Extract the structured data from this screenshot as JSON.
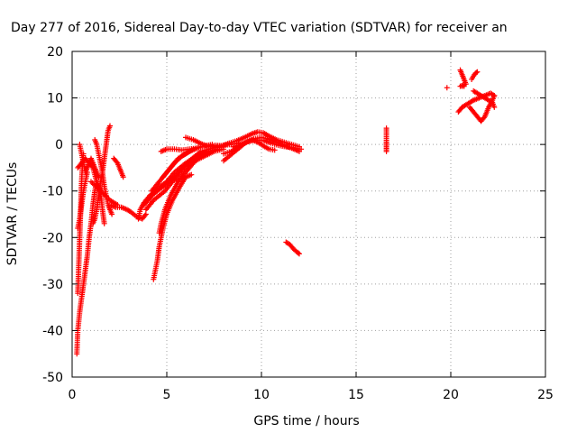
{
  "chart_data": {
    "type": "scatter",
    "title": "Day 277 of 2016, Sidereal Day-to-day VTEC variation (SDTVAR) for receiver an",
    "xlabel": "GPS time / hours",
    "ylabel": "SDTVAR / TECUs",
    "xlim": [
      0,
      25
    ],
    "ylim": [
      -50,
      20
    ],
    "xticks": [
      "0",
      "5",
      "10",
      "15",
      "20",
      "25"
    ],
    "yticks": [
      "-50",
      "-40",
      "-30",
      "-20",
      "-10",
      "0",
      "10",
      "20"
    ],
    "grid": true,
    "marker": "+",
    "color": "#ff0000",
    "segments": [
      [
        [
          0.25,
          -45
        ],
        [
          0.3,
          -40
        ],
        [
          0.4,
          -36
        ],
        [
          0.5,
          -33
        ],
        [
          0.6,
          -30
        ],
        [
          0.7,
          -27
        ],
        [
          0.8,
          -24
        ],
        [
          0.9,
          -20
        ],
        [
          1.0,
          -17
        ],
        [
          1.1,
          -13
        ],
        [
          1.2,
          -10
        ],
        [
          1.3,
          -8
        ]
      ],
      [
        [
          0.3,
          -32
        ],
        [
          0.35,
          -26
        ],
        [
          0.4,
          -20
        ],
        [
          0.45,
          -14
        ],
        [
          0.5,
          -8
        ],
        [
          0.55,
          -4
        ],
        [
          0.6,
          -2
        ]
      ],
      [
        [
          0.3,
          -18
        ],
        [
          0.4,
          -16
        ],
        [
          0.5,
          -13
        ],
        [
          0.6,
          -10
        ],
        [
          0.7,
          -8
        ],
        [
          0.8,
          -6
        ]
      ],
      [
        [
          0.4,
          0
        ],
        [
          0.5,
          -2
        ],
        [
          0.6,
          -4
        ],
        [
          0.7,
          -6
        ],
        [
          0.8,
          -5
        ],
        [
          0.9,
          -4
        ],
        [
          1.0,
          -3
        ],
        [
          1.1,
          -4
        ],
        [
          1.2,
          -5
        ],
        [
          1.3,
          -6
        ],
        [
          1.4,
          -7
        ]
      ],
      [
        [
          0.3,
          -5
        ],
        [
          0.5,
          -4
        ],
        [
          0.7,
          -3
        ],
        [
          0.9,
          -4
        ],
        [
          1.1,
          -5
        ],
        [
          1.3,
          -8
        ],
        [
          1.5,
          -10
        ],
        [
          1.6,
          -14
        ],
        [
          1.7,
          -17
        ]
      ],
      [
        [
          1.1,
          -17
        ],
        [
          1.2,
          -16
        ],
        [
          1.3,
          -14
        ],
        [
          1.4,
          -11
        ],
        [
          1.5,
          -8
        ],
        [
          1.6,
          -6
        ],
        [
          1.7,
          -3
        ],
        [
          1.8,
          0
        ],
        [
          1.9,
          3
        ],
        [
          2.0,
          4
        ]
      ],
      [
        [
          1.2,
          1
        ],
        [
          1.3,
          0
        ],
        [
          1.4,
          -2
        ],
        [
          1.5,
          -4
        ],
        [
          1.6,
          -6
        ],
        [
          1.7,
          -9
        ],
        [
          1.8,
          -11
        ],
        [
          1.9,
          -13
        ],
        [
          2.0,
          -14
        ],
        [
          2.1,
          -15
        ]
      ],
      [
        [
          2.2,
          -3
        ],
        [
          2.3,
          -3.5
        ],
        [
          2.4,
          -4
        ],
        [
          2.5,
          -5
        ],
        [
          2.6,
          -6
        ],
        [
          2.7,
          -7
        ]
      ],
      [
        [
          2.0,
          -13
        ],
        [
          2.3,
          -13.5
        ],
        [
          2.6,
          -13.5
        ],
        [
          2.9,
          -14
        ],
        [
          3.1,
          -14.5
        ],
        [
          3.4,
          -15.5
        ],
        [
          3.7,
          -16
        ],
        [
          3.9,
          -15
        ]
      ],
      [
        [
          1.0,
          -8
        ],
        [
          1.5,
          -10
        ],
        [
          2.0,
          -12
        ],
        [
          2.4,
          -13
        ]
      ],
      [
        [
          3.5,
          -16
        ],
        [
          3.6,
          -14
        ],
        [
          3.8,
          -12.5
        ],
        [
          4.1,
          -11
        ],
        [
          4.5,
          -9.5
        ],
        [
          5.0,
          -8
        ],
        [
          5.5,
          -7.5
        ],
        [
          6.0,
          -7
        ],
        [
          6.3,
          -6.5
        ]
      ],
      [
        [
          4.3,
          -29
        ],
        [
          4.4,
          -27
        ],
        [
          4.5,
          -25
        ],
        [
          4.6,
          -22
        ],
        [
          4.7,
          -20
        ],
        [
          4.8,
          -18
        ],
        [
          5.0,
          -15
        ],
        [
          5.3,
          -12
        ],
        [
          5.7,
          -9
        ],
        [
          6.0,
          -7
        ]
      ],
      [
        [
          4.6,
          -19
        ],
        [
          4.7,
          -17
        ],
        [
          4.9,
          -14
        ],
        [
          5.2,
          -11
        ],
        [
          5.6,
          -8
        ],
        [
          6.0,
          -6
        ],
        [
          6.4,
          -4
        ],
        [
          6.8,
          -2.5
        ],
        [
          7.2,
          -1.5
        ],
        [
          7.6,
          -1
        ]
      ],
      [
        [
          3.8,
          -13
        ],
        [
          4.2,
          -11
        ],
        [
          4.8,
          -9
        ],
        [
          5.4,
          -6
        ],
        [
          6.0,
          -4
        ],
        [
          6.6,
          -2.5
        ],
        [
          7.2,
          -1.5
        ],
        [
          7.8,
          -1
        ]
      ],
      [
        [
          3.9,
          -14
        ],
        [
          4.3,
          -12
        ],
        [
          4.9,
          -10
        ],
        [
          5.5,
          -7
        ],
        [
          6.0,
          -5
        ],
        [
          6.5,
          -3.5
        ],
        [
          7.0,
          -2.5
        ],
        [
          7.5,
          -1.5
        ],
        [
          8.0,
          -1
        ]
      ],
      [
        [
          4.0,
          -12
        ],
        [
          4.4,
          -10
        ],
        [
          5.0,
          -8.5
        ],
        [
          5.6,
          -6
        ],
        [
          6.2,
          -3.5
        ],
        [
          6.8,
          -1.5
        ],
        [
          7.4,
          -0.8
        ],
        [
          8.0,
          -0.5
        ]
      ],
      [
        [
          4.2,
          -10
        ],
        [
          4.6,
          -8
        ],
        [
          5.0,
          -6
        ],
        [
          5.4,
          -4
        ],
        [
          5.8,
          -2.5
        ],
        [
          6.2,
          -1.5
        ],
        [
          6.6,
          -0.8
        ],
        [
          7.0,
          -0.3
        ],
        [
          7.4,
          0
        ]
      ],
      [
        [
          4.8,
          -7
        ],
        [
          5.2,
          -5
        ],
        [
          5.6,
          -3
        ],
        [
          6.0,
          -2
        ],
        [
          6.4,
          -1
        ],
        [
          6.8,
          -0.5
        ],
        [
          7.2,
          -0.3
        ],
        [
          7.6,
          -0.2
        ],
        [
          8.0,
          -0.3
        ]
      ],
      [
        [
          4.7,
          -1.5
        ],
        [
          5.0,
          -1
        ],
        [
          5.4,
          -1
        ],
        [
          5.8,
          -1.2
        ],
        [
          6.2,
          -1
        ],
        [
          6.6,
          -0.8
        ]
      ],
      [
        [
          6.0,
          1.5
        ],
        [
          6.4,
          1
        ],
        [
          6.8,
          0.2
        ],
        [
          7.2,
          -0.5
        ],
        [
          7.6,
          -0.5
        ],
        [
          8.0,
          -0.2
        ],
        [
          8.4,
          0
        ],
        [
          8.8,
          0.3
        ]
      ],
      [
        [
          7.5,
          -0.5
        ],
        [
          7.9,
          -0.3
        ],
        [
          8.3,
          0.3
        ],
        [
          8.7,
          0.8
        ],
        [
          9.1,
          1.5
        ],
        [
          9.5,
          2.3
        ],
        [
          9.8,
          2.7
        ],
        [
          10.1,
          2.5
        ],
        [
          10.4,
          1.8
        ],
        [
          10.8,
          1
        ],
        [
          11.2,
          0.5
        ],
        [
          11.6,
          0
        ],
        [
          12.0,
          -0.5
        ]
      ],
      [
        [
          8.0,
          -2
        ],
        [
          8.4,
          -1.5
        ],
        [
          8.8,
          -0.5
        ],
        [
          9.2,
          0.5
        ],
        [
          9.6,
          1.2
        ],
        [
          10.0,
          1.5
        ],
        [
          10.4,
          1.2
        ],
        [
          10.8,
          0.5
        ],
        [
          11.2,
          -0.2
        ],
        [
          11.6,
          -0.8
        ],
        [
          12.0,
          -1.5
        ]
      ],
      [
        [
          8.0,
          -3.5
        ],
        [
          8.3,
          -2.5
        ],
        [
          8.6,
          -1.5
        ],
        [
          8.9,
          -0.5
        ],
        [
          9.2,
          0.5
        ],
        [
          9.5,
          1
        ],
        [
          9.8,
          0.5
        ],
        [
          10.1,
          -0.3
        ],
        [
          10.4,
          -1
        ],
        [
          10.7,
          -1.2
        ]
      ],
      [
        [
          8.5,
          -0.5
        ],
        [
          8.9,
          0
        ],
        [
          9.3,
          0.6
        ],
        [
          9.7,
          1
        ],
        [
          10.1,
          0.9
        ],
        [
          10.5,
          0.3
        ],
        [
          10.9,
          -0.2
        ],
        [
          11.3,
          -0.5
        ],
        [
          11.7,
          -0.8
        ],
        [
          12.1,
          -1
        ]
      ],
      [
        [
          11.3,
          -21
        ],
        [
          11.5,
          -21.5
        ],
        [
          11.7,
          -22.5
        ],
        [
          11.9,
          -23.2
        ],
        [
          12.0,
          -23.5
        ]
      ],
      [
        [
          16.6,
          3.5
        ],
        [
          16.6,
          0.5
        ],
        [
          16.6,
          -0.5
        ],
        [
          16.6,
          -1.5
        ]
      ],
      [
        [
          19.8,
          12.2
        ]
      ],
      [
        [
          20.5,
          16
        ],
        [
          20.6,
          15
        ],
        [
          20.7,
          14
        ],
        [
          20.8,
          13
        ],
        [
          20.5,
          12.5
        ],
        [
          20.7,
          12.5
        ]
      ],
      [
        [
          20.4,
          7
        ],
        [
          20.6,
          8
        ],
        [
          20.8,
          8.5
        ],
        [
          21.0,
          9
        ],
        [
          21.2,
          9.5
        ],
        [
          21.5,
          10
        ],
        [
          21.8,
          10.5
        ],
        [
          22.1,
          11
        ],
        [
          22.3,
          10.5
        ]
      ],
      [
        [
          21.2,
          11.5
        ],
        [
          21.4,
          11
        ],
        [
          21.6,
          10.5
        ],
        [
          21.8,
          10
        ],
        [
          22.0,
          9.5
        ],
        [
          22.2,
          9
        ],
        [
          22.3,
          8
        ]
      ],
      [
        [
          21.0,
          8
        ],
        [
          21.2,
          7
        ],
        [
          21.4,
          6
        ],
        [
          21.6,
          5
        ],
        [
          21.8,
          6
        ],
        [
          22.0,
          8
        ],
        [
          22.2,
          9.5
        ],
        [
          22.3,
          10.5
        ]
      ],
      [
        [
          21.1,
          14
        ],
        [
          21.2,
          14.7
        ],
        [
          21.3,
          15.3
        ],
        [
          21.4,
          15.6
        ]
      ]
    ]
  }
}
